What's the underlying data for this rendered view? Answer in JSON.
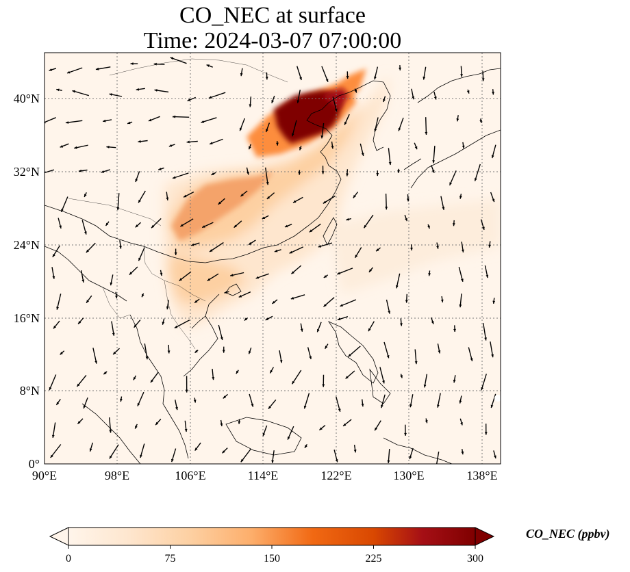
{
  "title": "CO_NEC at surface",
  "subtitle": "Time: 2024-03-07 07:00:00",
  "map": {
    "lon_range": [
      90,
      140
    ],
    "lat_range": [
      0,
      45
    ],
    "lon_ticks": [
      90,
      98,
      106,
      114,
      122,
      130,
      138
    ],
    "lat_ticks": [
      0,
      8,
      16,
      24,
      32,
      40
    ],
    "lon_labels": [
      "90°E",
      "98°E",
      "106°E",
      "114°E",
      "122°E",
      "130°E",
      "138°E"
    ],
    "lat_labels": [
      "0°",
      "8°N",
      "16°N",
      "24°N",
      "32°N",
      "40°N"
    ],
    "gridlines": true,
    "variable": "CO_NEC",
    "wind_vectors": true
  },
  "colorbar": {
    "label": "CO_NEC (ppbv)",
    "min": 0,
    "max": 300,
    "ticks": [
      0,
      75,
      150,
      225,
      300
    ],
    "tick_labels": [
      "0",
      "75",
      "150",
      "225",
      "300"
    ],
    "extend": "both",
    "colors": [
      "#fff5eb",
      "#fee6ce",
      "#fdd0a2",
      "#fdae6b",
      "#fd8d3c",
      "#f16913",
      "#d94801",
      "#a50f15",
      "#7f0000"
    ]
  }
}
